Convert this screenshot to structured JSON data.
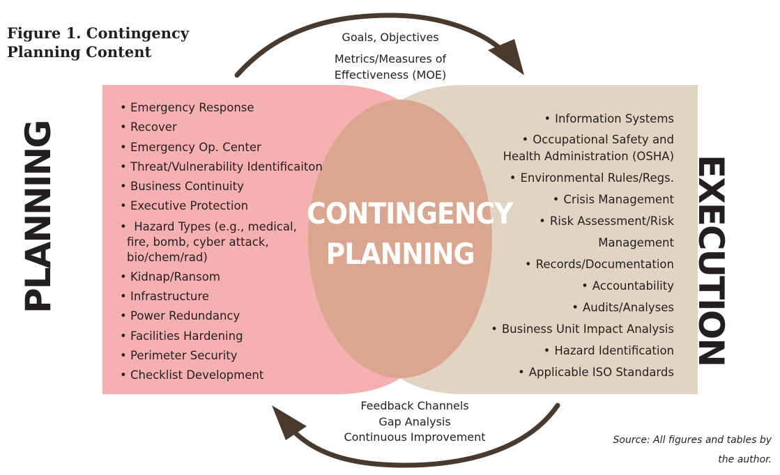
{
  "figure_title": "Figure 1. Contingency Planning Content",
  "center_label": [
    "CONTINGENCY",
    "PLANNING"
  ],
  "left_side_label": "PLANNING",
  "right_side_label": "EXECUTION",
  "top_arrow_text": [
    "Goals, Objectives",
    "Metrics/Measures of",
    "Effectiveness (MOE)"
  ],
  "bottom_arrow_text": [
    "Feedback Channels",
    "Gap Analysis",
    "Continuous Improvement"
  ],
  "planning_items": [
    "Emergency Response",
    "Recover",
    "Emergency Op. Center",
    "Threat/Vulnerability Identificaiton",
    "Business Continuity",
    "Executive Protection",
    "Hazard Types (e.g., medical,",
    "fire, bomb, cyber attack,",
    "bio/chem/rad)",
    "Kidnap/Ransom",
    "Infrastructure",
    "Power Redundancy",
    "Facilities Hardening",
    "Perimeter Security",
    "Checklist Development"
  ],
  "execution_items": [
    "Information Systems",
    "Occupational Safety and",
    "Health Administration (OSHA)",
    "Environmental Rules/Regs.",
    "Crisis Management",
    "Risk Assessment/Risk",
    "Management",
    "Records/Documentation",
    "Accountability",
    "Audits/Analyses",
    "Business Unit Impact Analysis",
    "Hazard Identification",
    "Applicable ISO Standards"
  ],
  "source_note": [
    "Source: All figures and tables by",
    "the author."
  ],
  "colors": {
    "planning_fill": "#f6b0b1",
    "execution_fill": "#e2d4c3",
    "overlap_fill": "#daa68f",
    "arrow": "#4a3a2e",
    "text": "#231f20"
  }
}
